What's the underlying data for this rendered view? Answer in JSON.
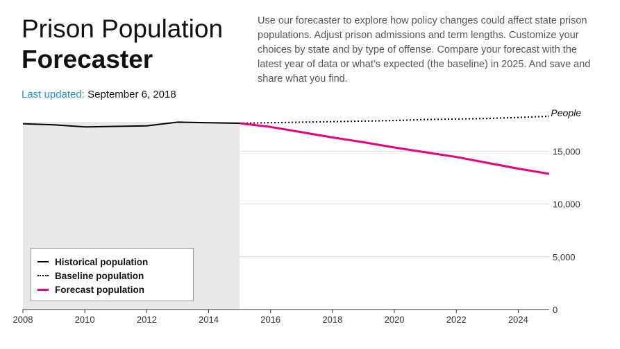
{
  "header": {
    "title_line1": "Prison Population",
    "title_line2": "Forecaster",
    "last_updated_label": "Last updated:",
    "last_updated_value": "September 6, 2018",
    "description": "Use our forecaster to explore how policy changes could affect state prison populations. Adjust prison admissions and term lengths. Customize your choices by state and by type of offense. Compare your forecast with the latest year of data or what’s expected (the baseline) in 2025. And save and share what you find."
  },
  "colors": {
    "historical": "#000000",
    "baseline": "#000000",
    "forecast": "#e6007e",
    "shaded_region": "#e8e8e8",
    "gridline": "#d9d9d9"
  },
  "chart_data": {
    "type": "line",
    "title": "",
    "ylabel": "People",
    "xlabel": "",
    "xlim": [
      2008,
      2025
    ],
    "ylim": [
      0,
      18500
    ],
    "x_ticks": [
      2008,
      2010,
      2012,
      2014,
      2016,
      2018,
      2020,
      2022,
      2024
    ],
    "x_tick_labels": [
      "2008",
      "2010",
      "2012",
      "2014",
      "2016",
      "2018",
      "2020",
      "2022",
      "2024"
    ],
    "y_ticks": [
      0,
      5000,
      10000,
      15000
    ],
    "y_tick_labels": [
      "0",
      "5,000",
      "10,000",
      "15,000"
    ],
    "shaded_range": [
      2008,
      2015
    ],
    "series": [
      {
        "name": "Historical population",
        "style": "solid",
        "x": [
          2008,
          2009,
          2010,
          2011,
          2012,
          2013,
          2014,
          2015
        ],
        "values": [
          17600,
          17500,
          17300,
          17350,
          17400,
          17750,
          17700,
          17650
        ]
      },
      {
        "name": "Baseline population",
        "style": "dotted",
        "x": [
          2015,
          2016,
          2017,
          2018,
          2019,
          2020,
          2021,
          2022,
          2023,
          2024,
          2025
        ],
        "values": [
          17650,
          17700,
          17750,
          17800,
          17850,
          17900,
          18000,
          18050,
          18100,
          18200,
          18300
        ]
      },
      {
        "name": "Forecast population",
        "style": "solid",
        "x": [
          2015,
          2016,
          2017,
          2018,
          2019,
          2020,
          2021,
          2022,
          2023,
          2024,
          2025
        ],
        "values": [
          17650,
          17300,
          16800,
          16300,
          15850,
          15350,
          14900,
          14450,
          13900,
          13350,
          12850
        ]
      }
    ]
  }
}
